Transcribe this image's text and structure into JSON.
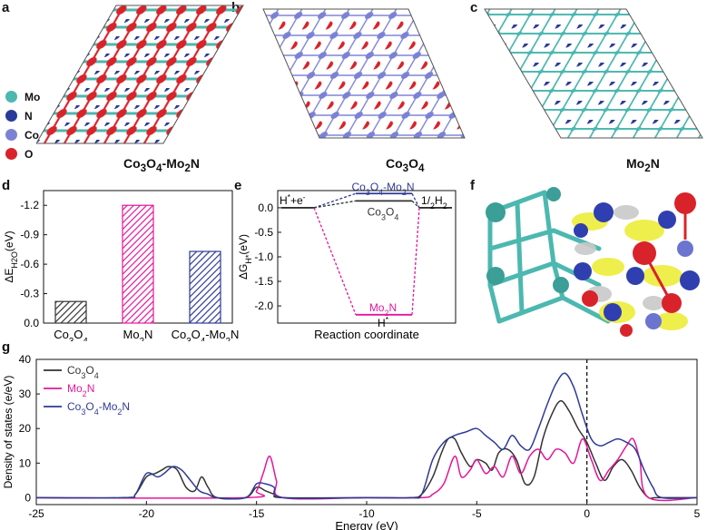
{
  "panels": {
    "a": {
      "letter": "a",
      "caption": "Co3O4-Mo2N",
      "legend": [
        {
          "label": "Mo",
          "color": "#4cb8b0"
        },
        {
          "label": "N",
          "color": "#2a3a9a"
        },
        {
          "label": "Co",
          "color": "#7b82d4"
        },
        {
          "label": "O",
          "color": "#d9232a"
        }
      ]
    },
    "b": {
      "letter": "b",
      "caption": "Co3O4"
    },
    "c": {
      "letter": "c",
      "caption": "Mo2N"
    },
    "d": {
      "letter": "d"
    },
    "e": {
      "letter": "e"
    },
    "f": {
      "letter": "f"
    },
    "g": {
      "letter": "g"
    }
  },
  "colors": {
    "co3o4": "#333333",
    "mo2n": "#e3179b",
    "hetero": "#2e3a96",
    "mo": "#4cb8b0",
    "n": "#2a3a9a",
    "co": "#7b82d4",
    "o": "#d9232a"
  },
  "chart_data": [
    {
      "id": "d",
      "type": "bar",
      "categories": [
        "Co3O4",
        "Mo2N",
        "Co3O4-Mo2N"
      ],
      "values": [
        -0.22,
        -1.2,
        -0.73
      ],
      "ylabel": "ΔE H2O (eV)",
      "ylim": [
        0.0,
        -1.35
      ],
      "yticks": [
        0.0,
        -0.3,
        -0.6,
        -0.9,
        -1.2
      ],
      "ytick_labels": [
        "0.0",
        "-0.3",
        "-0.6",
        "-0.9",
        "-1.2"
      ],
      "legend": null
    },
    {
      "id": "e",
      "type": "line",
      "xlabel": "Reaction coordinate",
      "ylabel": "ΔG H* (eV)",
      "ylim": [
        -2.35,
        0.35
      ],
      "yticks": [
        0.0,
        -0.5,
        -1.0,
        -1.5,
        -2.0
      ],
      "ytick_labels": [
        "0.0",
        "-0.5",
        "-1.0",
        "-1.5",
        "-2.0"
      ],
      "states": [
        "H*+e-",
        "H*",
        "1/2H2"
      ],
      "series": [
        {
          "name": "Co3O4-Mo2N",
          "values": [
            0.0,
            0.29,
            0.0
          ]
        },
        {
          "name": "Co3O4",
          "values": [
            0.0,
            0.14,
            0.0
          ]
        },
        {
          "name": "Mo2N",
          "values": [
            0.0,
            -2.18,
            0.0
          ]
        }
      ],
      "labels": {
        "left": "H*+e-",
        "right": "1/2H2",
        "bottom": "H*",
        "co3o4_mo2n": "Co3O4-Mo2N",
        "co3o4": "Co3O4",
        "mo2n": "Mo2N"
      }
    },
    {
      "id": "g",
      "type": "line",
      "xlabel": "Energy (eV)",
      "ylabel": "Density of states (e/eV)",
      "xlim": [
        -25,
        5
      ],
      "ylim": [
        -2,
        40
      ],
      "xticks": [
        -25,
        -20,
        -15,
        -10,
        -5,
        0,
        5
      ],
      "yticks": [
        0,
        10,
        20,
        30,
        40
      ],
      "fermi_level": 0,
      "legend_position": "top-left",
      "series": [
        {
          "name": "Co3O4",
          "x": [
            -25,
            -21,
            -20.5,
            -20,
            -19.6,
            -19.3,
            -19,
            -18.6,
            -18.2,
            -17.8,
            -17.5,
            -17.2,
            -16.8,
            -15.5,
            -15,
            -14.6,
            -14.2,
            -13.8,
            -10,
            -8,
            -7.5,
            -7,
            -6.6,
            -6.3,
            -6,
            -5.7,
            -5.3,
            -5,
            -4.6,
            -4.3,
            -4,
            -3.6,
            -3.2,
            -2.8,
            -2.4,
            -2,
            -1.6,
            -1.2,
            -0.8,
            -0.4,
            0,
            0.4,
            0.8,
            1.2,
            1.6,
            2,
            2.4,
            2.8,
            3.2,
            5
          ],
          "y": [
            0,
            0,
            1,
            6,
            7,
            8,
            9,
            8,
            3,
            2,
            6,
            3,
            0,
            0,
            3,
            2,
            1,
            0,
            0,
            0,
            1,
            6,
            13,
            17,
            17,
            13,
            9,
            11,
            10,
            8,
            13,
            14,
            11,
            4,
            6,
            17,
            24,
            28,
            25,
            20,
            16,
            10,
            5,
            9,
            11,
            8,
            3,
            0,
            0,
            0
          ]
        },
        {
          "name": "Mo2N",
          "x": [
            -25,
            -15.5,
            -15,
            -14.7,
            -14.4,
            -14.1,
            -13.8,
            -10,
            -7.5,
            -7,
            -6.5,
            -6,
            -5.7,
            -5.3,
            -5,
            -4.6,
            -4.2,
            -3.8,
            -3.4,
            -3,
            -2.6,
            -2.2,
            -1.8,
            -1.4,
            -1,
            -0.6,
            -0.2,
            0.2,
            0.6,
            1,
            1.4,
            1.8,
            2.1,
            2.4,
            2.8,
            5
          ],
          "y": [
            0,
            0,
            2,
            7,
            12,
            5,
            0,
            0,
            0,
            1,
            4,
            12,
            6,
            8,
            11,
            7,
            9,
            6,
            12,
            7,
            12,
            14,
            11,
            14,
            13,
            10,
            17,
            11,
            5,
            8,
            11,
            15,
            17,
            11,
            0,
            0
          ]
        },
        {
          "name": "Co3O4-Mo2N",
          "x": [
            -25,
            -21,
            -20.5,
            -20,
            -19.5,
            -19.2,
            -18.8,
            -18.4,
            -18,
            -17.6,
            -17.2,
            -16.8,
            -15.5,
            -15,
            -14.6,
            -14.2,
            -13.8,
            -10,
            -8,
            -7.5,
            -7,
            -6.5,
            -6,
            -5.5,
            -5,
            -4.6,
            -4.2,
            -3.8,
            -3.4,
            -3,
            -2.6,
            -2.2,
            -1.8,
            -1.4,
            -1,
            -0.6,
            -0.2,
            0.2,
            0.6,
            1,
            1.4,
            1.8,
            2.2,
            2.6,
            3,
            3.4,
            5
          ],
          "y": [
            0,
            0,
            1,
            7,
            6,
            7,
            9,
            8,
            5,
            2,
            1,
            0,
            0,
            4,
            4,
            3,
            0,
            0,
            0,
            1,
            11,
            16,
            18,
            19,
            20,
            18,
            16,
            14,
            18,
            15,
            14,
            20,
            27,
            33,
            36,
            32,
            24,
            17,
            15,
            16,
            17,
            16,
            14,
            8,
            3,
            0,
            0
          ]
        }
      ]
    }
  ]
}
